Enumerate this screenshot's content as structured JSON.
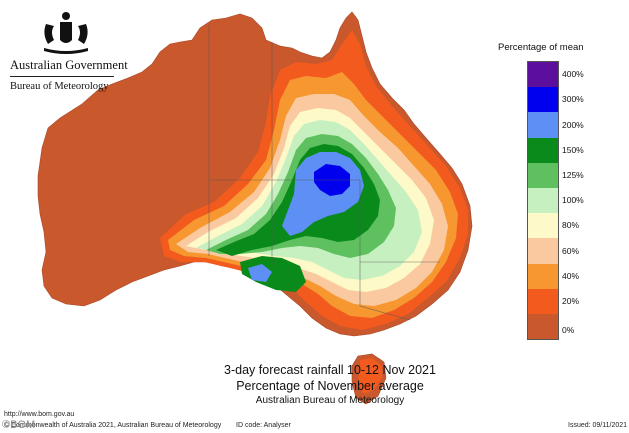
{
  "header": {
    "government": "Australian Government",
    "bureau": "Bureau of Meteorology"
  },
  "legend": {
    "title": "Percentage of mean",
    "bins": [
      {
        "label": "400%",
        "color": "#5b0f9c"
      },
      {
        "label": "300%",
        "color": "#0000ee"
      },
      {
        "label": "200%",
        "color": "#5d8ff5"
      },
      {
        "label": "150%",
        "color": "#0a8a1a"
      },
      {
        "label": "125%",
        "color": "#5fc060"
      },
      {
        "label": "100%",
        "color": "#c7f0c0"
      },
      {
        "label": "80%",
        "color": "#fdf9c8"
      },
      {
        "label": "60%",
        "color": "#fac9a0"
      },
      {
        "label": "40%",
        "color": "#f7972f"
      },
      {
        "label": "20%",
        "color": "#f25a1e"
      },
      {
        "label": "0%",
        "color": "#c9582d"
      }
    ]
  },
  "caption": {
    "line1": "3-day forecast rainfall 10-12 Nov 2021",
    "line2": "Percentage of November average",
    "line3": "Australian Bureau of Meteorology"
  },
  "footer": {
    "website": "http://www.bom.gov.au",
    "copyright": "© Commonwealth of Australia 2021, Australian Bureau of Meteorology",
    "id_code": "ID code: Analyser",
    "issued": "Issued: 09/11/2021"
  },
  "watermark": "©BOM"
}
